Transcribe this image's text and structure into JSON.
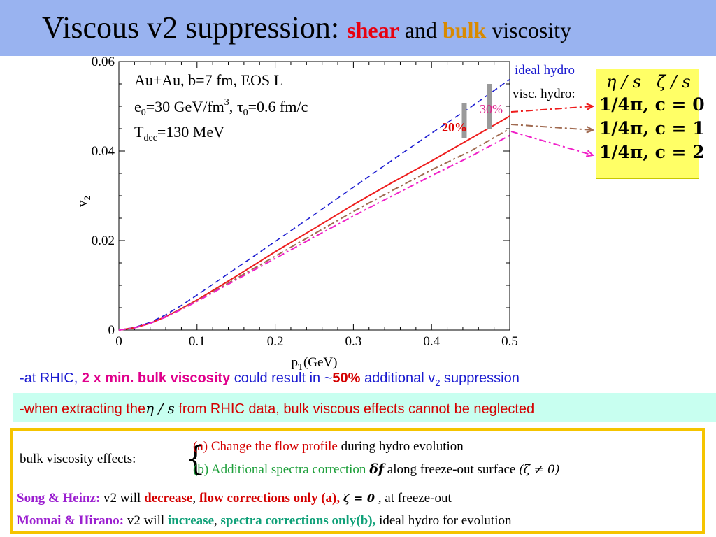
{
  "slide": {
    "title_main": "Viscous v2 suppression: ",
    "title_shear": "shear",
    "title_and": " and ",
    "title_bulk": "bulk",
    "title_visc": " viscosity"
  },
  "chart_data": {
    "type": "line",
    "xlabel": "pT(GeV)",
    "ylabel": "v2",
    "xlim": [
      0,
      0.5
    ],
    "ylim": [
      0,
      0.06
    ],
    "x_ticks": [
      "0",
      "0.1",
      "0.2",
      "0.3",
      "0.4",
      "0.5"
    ],
    "y_ticks": [
      "0",
      "0.02",
      "0.04",
      "0.06"
    ],
    "grid": false,
    "annotation_lines": [
      "Au+Au, b=7 fm, EOS L",
      "e0=30 GeV/fm3, τ0=0.6 fm/c",
      "Tdec=130 MeV"
    ],
    "series": [
      {
        "name": "ideal hydro",
        "color": "#1a1ad0",
        "style": "dashed",
        "x": [
          0,
          0.02,
          0.04,
          0.06,
          0.08,
          0.1,
          0.15,
          0.2,
          0.25,
          0.3,
          0.35,
          0.4,
          0.45,
          0.5
        ],
        "y": [
          0,
          0.0006,
          0.0017,
          0.0034,
          0.0055,
          0.0078,
          0.0138,
          0.0198,
          0.0258,
          0.0319,
          0.038,
          0.044,
          0.0498,
          0.056
        ]
      },
      {
        "name": "visc. hydro: η/s=1/4π, c=0",
        "color": "#ee1c1c",
        "style": "solid",
        "x": [
          0,
          0.02,
          0.04,
          0.06,
          0.08,
          0.1,
          0.15,
          0.2,
          0.25,
          0.3,
          0.35,
          0.4,
          0.45,
          0.5
        ],
        "y": [
          0,
          0.0005,
          0.0015,
          0.003,
          0.0048,
          0.0067,
          0.012,
          0.0175,
          0.0227,
          0.028,
          0.033,
          0.0378,
          0.0428,
          0.0478
        ]
      },
      {
        "name": "η/s=1/4π, c=1",
        "color": "#a06a50",
        "style": "dashdot",
        "x": [
          0,
          0.02,
          0.04,
          0.06,
          0.08,
          0.1,
          0.15,
          0.2,
          0.25,
          0.3,
          0.35,
          0.4,
          0.45,
          0.5
        ],
        "y": [
          0,
          0.0005,
          0.0015,
          0.0029,
          0.0047,
          0.0065,
          0.0115,
          0.0165,
          0.0215,
          0.0265,
          0.0312,
          0.0358,
          0.04,
          0.045
        ]
      },
      {
        "name": "η/s=1/4π, c=2",
        "color": "#f020c8",
        "style": "dashdot",
        "x": [
          0,
          0.02,
          0.04,
          0.06,
          0.08,
          0.1,
          0.15,
          0.2,
          0.25,
          0.3,
          0.35,
          0.4,
          0.45,
          0.5
        ],
        "y": [
          0,
          0.0005,
          0.0015,
          0.0029,
          0.0046,
          0.0064,
          0.0112,
          0.016,
          0.0208,
          0.0255,
          0.03,
          0.0345,
          0.0388,
          0.0435
        ]
      }
    ],
    "callouts": {
      "ideal_label": "ideal hydro",
      "visc_label": "visc. hydro:",
      "pct20": "20%",
      "pct30": "30%"
    }
  },
  "legend": {
    "header_eta": "η / s",
    "header_zeta": "ζ / s",
    "rows": [
      "1/4π,   c = 0",
      "1/4π,   c = 1",
      "1/4π,   c = 2"
    ]
  },
  "notes": {
    "n1_a": "-at RHIC, ",
    "n1_b": "2 x min. bulk viscosity",
    "n1_c": " could result in ~",
    "n1_d": "50%",
    "n1_e": " additional v",
    "n1_sub": "2",
    "n1_f": " suppression",
    "n2_a": "-when extracting the",
    "n2_sym": "η / s",
    "n2_b": "  from RHIC data, bulk viscous effects cannot be neglected"
  },
  "box": {
    "effects_label": "bulk viscosity effects:",
    "a_red": "(a) Change the flow profile",
    "a_black": " during hydro evolution",
    "b_green": "(b) Additional spectra correction",
    "b_sym": "δf",
    "b_black": " along freeze-out surface",
    "b_cond": "(ζ ≠ 0)",
    "song_label": "Song & Heinz:",
    "song_v2": " v2 will ",
    "song_dec": "decrease",
    "song_comma": ", ",
    "song_flow": "flow corrections only (a),",
    "song_zeta": "ζ = 0",
    "song_end": " , at freeze-out",
    "monnai_label": "Monnai & Hirano:",
    "monnai_v2": " v2 will ",
    "monnai_inc": "increase",
    "monnai_comma": ", ",
    "monnai_spec": "spectra corrections only(b),",
    "monnai_end": "  ideal hydro for evolution"
  }
}
